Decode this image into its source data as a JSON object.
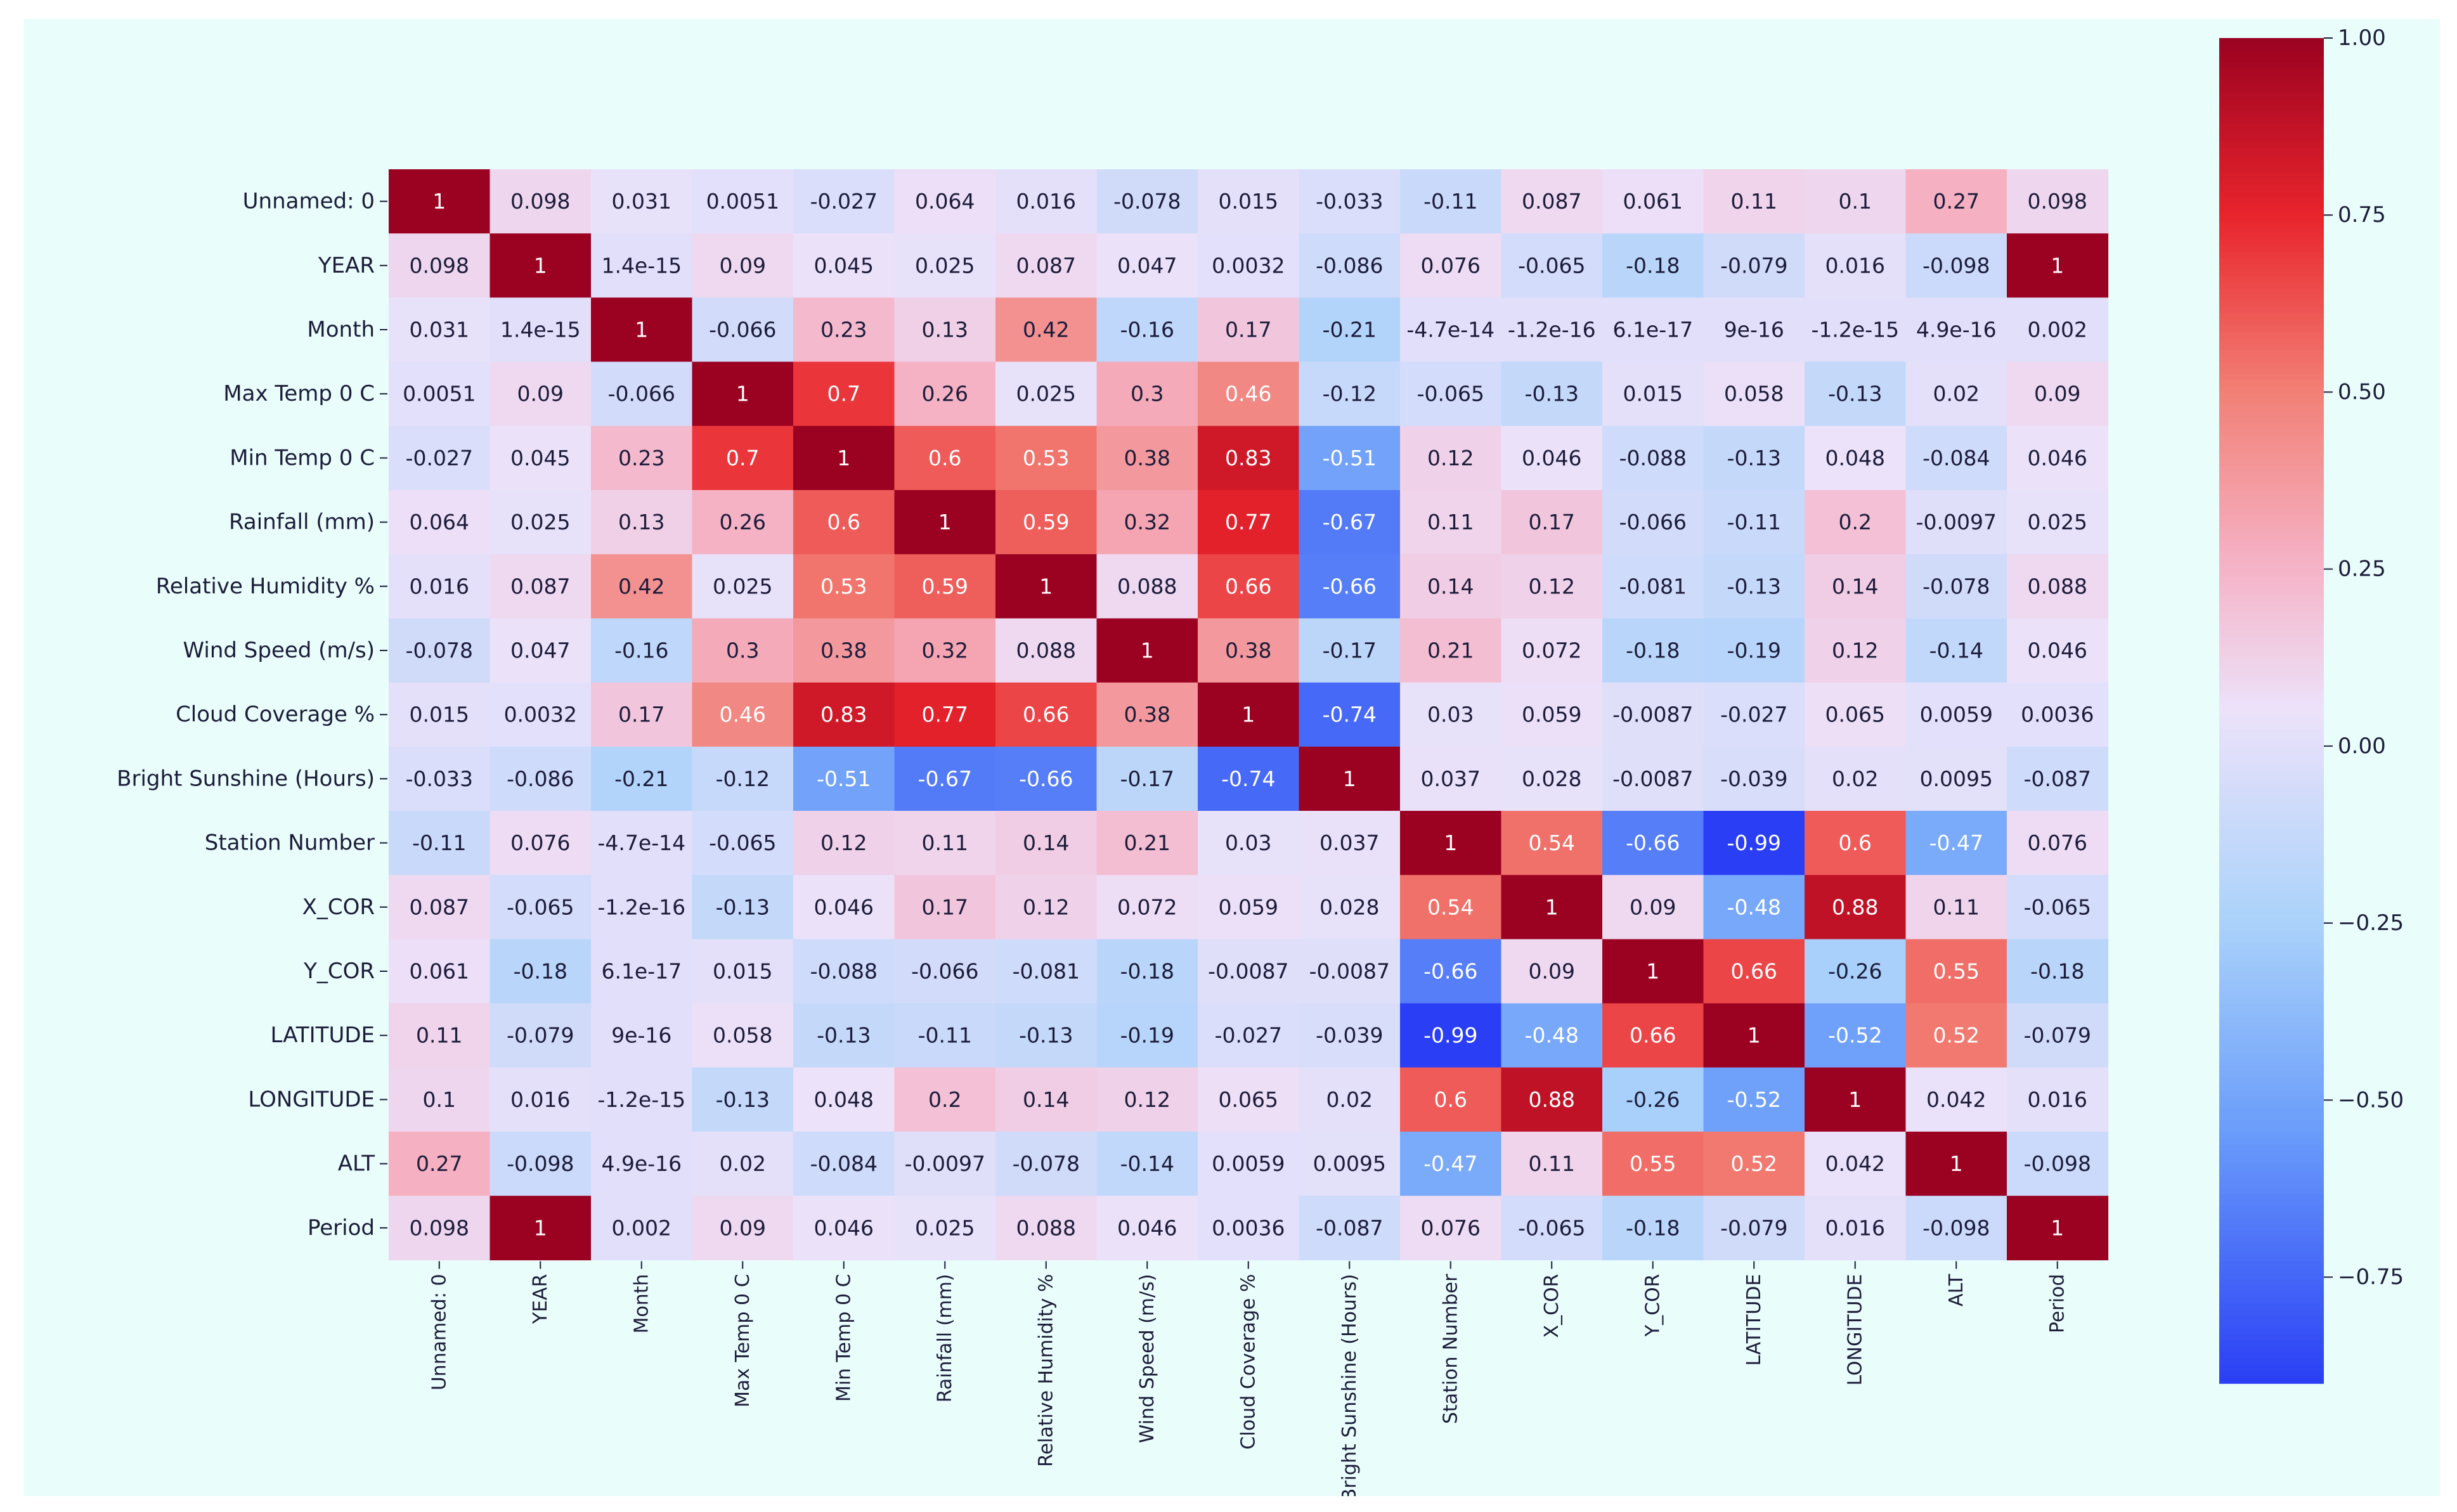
{
  "chart_data": {
    "type": "heatmap",
    "title": "",
    "labels": [
      "Unnamed: 0",
      "YEAR",
      "Month",
      "Max Temp 0 C",
      "Min Temp 0 C",
      "Rainfall (mm)",
      "Relative Humidity %",
      "Wind Speed (m/s)",
      "Cloud Coverage %",
      "Bright Sunshine (Hours)",
      "Station Number",
      "X_COR",
      "Y_COR",
      "LATITUDE",
      "LONGITUDE",
      "ALT",
      "Period"
    ],
    "matrix": [
      [
        1,
        0.098,
        0.031,
        0.0051,
        -0.027,
        0.064,
        0.016,
        -0.078,
        0.015,
        -0.033,
        -0.11,
        0.087,
        0.061,
        0.11,
        0.1,
        0.27,
        0.098
      ],
      [
        0.098,
        1,
        1.4e-15,
        0.09,
        0.045,
        0.025,
        0.087,
        0.047,
        0.0032,
        -0.086,
        0.076,
        -0.065,
        -0.18,
        -0.079,
        0.016,
        -0.098,
        1
      ],
      [
        0.031,
        1.4e-15,
        1,
        -0.066,
        0.23,
        0.13,
        0.42,
        -0.16,
        0.17,
        -0.21,
        -4.7e-14,
        -1.2e-16,
        6.1e-17,
        9e-16,
        -1.2e-15,
        4.9e-16,
        0.002
      ],
      [
        0.0051,
        0.09,
        -0.066,
        1,
        0.7,
        0.26,
        0.025,
        0.3,
        0.46,
        -0.12,
        -0.065,
        -0.13,
        0.015,
        0.058,
        -0.13,
        0.02,
        0.09
      ],
      [
        -0.027,
        0.045,
        0.23,
        0.7,
        1,
        0.6,
        0.53,
        0.38,
        0.83,
        -0.51,
        0.12,
        0.046,
        -0.088,
        -0.13,
        0.048,
        -0.084,
        0.046
      ],
      [
        0.064,
        0.025,
        0.13,
        0.26,
        0.6,
        1,
        0.59,
        0.32,
        0.77,
        -0.67,
        0.11,
        0.17,
        -0.066,
        -0.11,
        0.2,
        -0.0097,
        0.025
      ],
      [
        0.016,
        0.087,
        0.42,
        0.025,
        0.53,
        0.59,
        1,
        0.088,
        0.66,
        -0.66,
        0.14,
        0.12,
        -0.081,
        -0.13,
        0.14,
        -0.078,
        0.088
      ],
      [
        -0.078,
        0.047,
        -0.16,
        0.3,
        0.38,
        0.32,
        0.088,
        1,
        0.38,
        -0.17,
        0.21,
        0.072,
        -0.18,
        -0.19,
        0.12,
        -0.14,
        0.046
      ],
      [
        0.015,
        0.0032,
        0.17,
        0.46,
        0.83,
        0.77,
        0.66,
        0.38,
        1,
        -0.74,
        0.03,
        0.059,
        -0.0087,
        -0.027,
        0.065,
        0.0059,
        0.0036
      ],
      [
        -0.033,
        -0.086,
        -0.21,
        -0.12,
        -0.51,
        -0.67,
        -0.66,
        -0.17,
        -0.74,
        1,
        0.037,
        0.028,
        -0.0087,
        -0.039,
        0.02,
        0.0095,
        -0.087
      ],
      [
        -0.11,
        0.076,
        -4.7e-14,
        -0.065,
        0.12,
        0.11,
        0.14,
        0.21,
        0.03,
        0.037,
        1,
        0.54,
        -0.66,
        -0.99,
        0.6,
        -0.47,
        0.076
      ],
      [
        0.087,
        -0.065,
        -1.2e-16,
        -0.13,
        0.046,
        0.17,
        0.12,
        0.072,
        0.059,
        0.028,
        0.54,
        1,
        0.09,
        -0.48,
        0.88,
        0.11,
        -0.065
      ],
      [
        0.061,
        -0.18,
        6.1e-17,
        0.015,
        -0.088,
        -0.066,
        -0.081,
        -0.18,
        -0.0087,
        -0.0087,
        -0.66,
        0.09,
        1,
        0.66,
        -0.26,
        0.55,
        -0.18
      ],
      [
        0.11,
        -0.079,
        9e-16,
        0.058,
        -0.13,
        -0.11,
        -0.13,
        -0.19,
        -0.027,
        -0.039,
        -0.99,
        -0.48,
        0.66,
        1,
        -0.52,
        0.52,
        -0.079
      ],
      [
        0.1,
        0.016,
        -1.2e-15,
        -0.13,
        0.048,
        0.2,
        0.14,
        0.12,
        0.065,
        0.02,
        0.6,
        0.88,
        -0.26,
        -0.52,
        1,
        0.042,
        0.016
      ],
      [
        0.27,
        -0.098,
        4.9e-16,
        0.02,
        -0.084,
        -0.0097,
        -0.078,
        -0.14,
        0.0059,
        0.0095,
        -0.47,
        0.11,
        0.55,
        0.52,
        0.042,
        1,
        -0.098
      ],
      [
        0.098,
        1,
        0.002,
        0.09,
        0.046,
        0.025,
        0.088,
        0.046,
        0.0036,
        -0.087,
        0.076,
        -0.065,
        -0.18,
        -0.079,
        0.016,
        -0.098,
        1
      ]
    ],
    "display": [
      [
        "1",
        "0.098",
        "0.031",
        "0.0051",
        "-0.027",
        "0.064",
        "0.016",
        "-0.078",
        "0.015",
        "-0.033",
        "-0.11",
        "0.087",
        "0.061",
        "0.11",
        "0.1",
        "0.27",
        "0.098"
      ],
      [
        "0.098",
        "1",
        "1.4e-15",
        "0.09",
        "0.045",
        "0.025",
        "0.087",
        "0.047",
        "0.0032",
        "-0.086",
        "0.076",
        "-0.065",
        "-0.18",
        "-0.079",
        "0.016",
        "-0.098",
        "1"
      ],
      [
        "0.031",
        "1.4e-15",
        "1",
        "-0.066",
        "0.23",
        "0.13",
        "0.42",
        "-0.16",
        "0.17",
        "-0.21",
        "-4.7e-14",
        "-1.2e-16",
        "6.1e-17",
        "9e-16",
        "-1.2e-15",
        "4.9e-16",
        "0.002"
      ],
      [
        "0.0051",
        "0.09",
        "-0.066",
        "1",
        "0.7",
        "0.26",
        "0.025",
        "0.3",
        "0.46",
        "-0.12",
        "-0.065",
        "-0.13",
        "0.015",
        "0.058",
        "-0.13",
        "0.02",
        "0.09"
      ],
      [
        "-0.027",
        "0.045",
        "0.23",
        "0.7",
        "1",
        "0.6",
        "0.53",
        "0.38",
        "0.83",
        "-0.51",
        "0.12",
        "0.046",
        "-0.088",
        "-0.13",
        "0.048",
        "-0.084",
        "0.046"
      ],
      [
        "0.064",
        "0.025",
        "0.13",
        "0.26",
        "0.6",
        "1",
        "0.59",
        "0.32",
        "0.77",
        "-0.67",
        "0.11",
        "0.17",
        "-0.066",
        "-0.11",
        "0.2",
        "-0.0097",
        "0.025"
      ],
      [
        "0.016",
        "0.087",
        "0.42",
        "0.025",
        "0.53",
        "0.59",
        "1",
        "0.088",
        "0.66",
        "-0.66",
        "0.14",
        "0.12",
        "-0.081",
        "-0.13",
        "0.14",
        "-0.078",
        "0.088"
      ],
      [
        "-0.078",
        "0.047",
        "-0.16",
        "0.3",
        "0.38",
        "0.32",
        "0.088",
        "1",
        "0.38",
        "-0.17",
        "0.21",
        "0.072",
        "-0.18",
        "-0.19",
        "0.12",
        "-0.14",
        "0.046"
      ],
      [
        "0.015",
        "0.0032",
        "0.17",
        "0.46",
        "0.83",
        "0.77",
        "0.66",
        "0.38",
        "1",
        "-0.74",
        "0.03",
        "0.059",
        "-0.0087",
        "-0.027",
        "0.065",
        "0.0059",
        "0.0036"
      ],
      [
        "-0.033",
        "-0.086",
        "-0.21",
        "-0.12",
        "-0.51",
        "-0.67",
        "-0.66",
        "-0.17",
        "-0.74",
        "1",
        "0.037",
        "0.028",
        "-0.0087",
        "-0.039",
        "0.02",
        "0.0095",
        "-0.087"
      ],
      [
        "-0.11",
        "0.076",
        "-4.7e-14",
        "-0.065",
        "0.12",
        "0.11",
        "0.14",
        "0.21",
        "0.03",
        "0.037",
        "1",
        "0.54",
        "-0.66",
        "-0.99",
        "0.6",
        "-0.47",
        "0.076"
      ],
      [
        "0.087",
        "-0.065",
        "-1.2e-16",
        "-0.13",
        "0.046",
        "0.17",
        "0.12",
        "0.072",
        "0.059",
        "0.028",
        "0.54",
        "1",
        "0.09",
        "-0.48",
        "0.88",
        "0.11",
        "-0.065"
      ],
      [
        "0.061",
        "-0.18",
        "6.1e-17",
        "0.015",
        "-0.088",
        "-0.066",
        "-0.081",
        "-0.18",
        "-0.0087",
        "-0.0087",
        "-0.66",
        "0.09",
        "1",
        "0.66",
        "-0.26",
        "0.55",
        "-0.18"
      ],
      [
        "0.11",
        "-0.079",
        "9e-16",
        "0.058",
        "-0.13",
        "-0.11",
        "-0.13",
        "-0.19",
        "-0.027",
        "-0.039",
        "-0.99",
        "-0.48",
        "0.66",
        "1",
        "-0.52",
        "0.52",
        "-0.079"
      ],
      [
        "0.1",
        "0.016",
        "-1.2e-15",
        "-0.13",
        "0.048",
        "0.2",
        "0.14",
        "0.12",
        "0.065",
        "0.02",
        "0.6",
        "0.88",
        "-0.26",
        "-0.52",
        "1",
        "0.042",
        "0.016"
      ],
      [
        "0.27",
        "-0.098",
        "4.9e-16",
        "0.02",
        "-0.084",
        "-0.0097",
        "-0.078",
        "-0.14",
        "0.0059",
        "0.0095",
        "-0.47",
        "0.11",
        "0.55",
        "0.52",
        "0.042",
        "1",
        "-0.098"
      ],
      [
        "0.098",
        "1",
        "0.002",
        "0.09",
        "0.046",
        "0.025",
        "0.088",
        "0.046",
        "0.0036",
        "-0.087",
        "0.076",
        "-0.065",
        "-0.18",
        "-0.079",
        "0.016",
        "-0.098",
        "1"
      ]
    ],
    "colorbar": {
      "min": -0.9,
      "max": 1.0,
      "ticks": [
        1.0,
        0.75,
        0.5,
        0.25,
        0.0,
        -0.25,
        -0.5,
        -0.75
      ],
      "tick_labels": [
        "1.00",
        "0.75",
        "0.50",
        "0.25",
        "0.00",
        "−0.25",
        "−0.50",
        "−0.75"
      ]
    },
    "colormap": "coolwarm-style (blue-white-red)",
    "colors": {
      "low": "#2a3ff5",
      "mid": "#ece2fa",
      "high": "#9b0221",
      "background": "#e9fdfb"
    }
  }
}
